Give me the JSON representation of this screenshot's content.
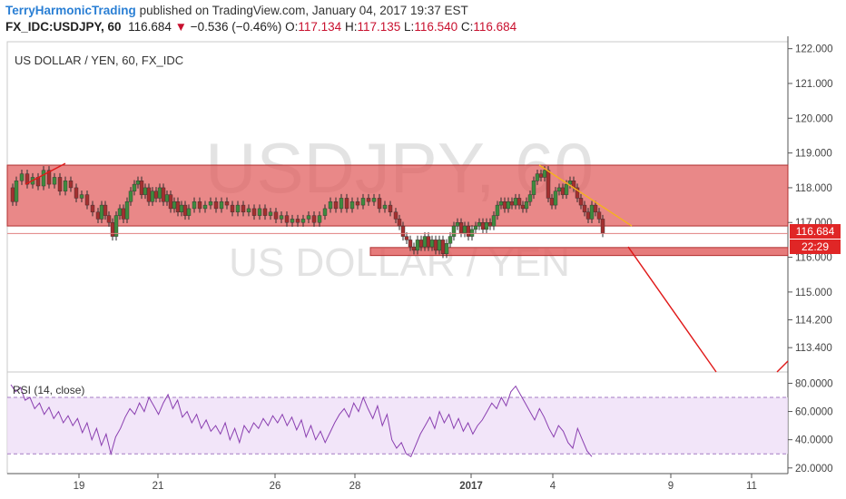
{
  "header": {
    "author": "TerryHarmonicTrading",
    "published_text": "published on TradingView.com, January 04, 2017 19:37 EST",
    "symbol": "FX_IDC:USDJPY, 60",
    "last": "116.684",
    "change_arrow": "▼",
    "change": "−0.536 (−0.46%)",
    "open_label": "O:",
    "open": "117.134",
    "high_label": "H:",
    "high": "117.135",
    "low_label": "L:",
    "low": "116.540",
    "close_label": "C:",
    "close": "116.684"
  },
  "chart_data": [
    {
      "type": "candlestick",
      "title": "US DOLLAR / YEN, 60, FX_IDC",
      "watermark_symbol": "USDJPY, 60",
      "watermark_name": "US DOLLAR / YEN",
      "y_ticks": [
        "122.000",
        "121.000",
        "120.000",
        "119.000",
        "118.000",
        "117.000",
        "116.000",
        "115.000",
        "114.200",
        "113.400"
      ],
      "x_ticks": [
        "19",
        "21",
        "26",
        "28",
        "2017",
        "4",
        "9",
        "11"
      ],
      "ylim": [
        112.7,
        122.2
      ],
      "price_label": "116.684",
      "countdown_label": "22:29",
      "zones": [
        {
          "name": "resistance-zone",
          "from": 116.9,
          "to": 118.65
        },
        {
          "name": "support-zone",
          "from": 116.05,
          "to": 116.28
        }
      ],
      "price_path": [
        [
          0,
          118.0
        ],
        [
          4,
          117.6
        ],
        [
          8,
          118.2
        ],
        [
          14,
          118.4
        ],
        [
          20,
          118.1
        ],
        [
          26,
          118.3
        ],
        [
          32,
          118.05
        ],
        [
          38,
          118.5
        ],
        [
          44,
          118.1
        ],
        [
          50,
          118.3
        ],
        [
          56,
          117.9
        ],
        [
          62,
          118.2
        ],
        [
          68,
          118.0
        ],
        [
          74,
          117.7
        ],
        [
          80,
          117.8
        ],
        [
          86,
          117.5
        ],
        [
          92,
          117.3
        ],
        [
          98,
          117.1
        ],
        [
          102,
          117.5
        ],
        [
          106,
          117.2
        ],
        [
          110,
          117.0
        ],
        [
          114,
          116.6
        ],
        [
          118,
          117.2
        ],
        [
          122,
          117.4
        ],
        [
          126,
          117.1
        ],
        [
          130,
          117.6
        ],
        [
          134,
          117.9
        ],
        [
          138,
          118.1
        ],
        [
          142,
          118.2
        ],
        [
          146,
          117.8
        ],
        [
          150,
          118.0
        ],
        [
          154,
          117.6
        ],
        [
          158,
          117.9
        ],
        [
          162,
          117.7
        ],
        [
          166,
          118.0
        ],
        [
          170,
          117.6
        ],
        [
          174,
          117.8
        ],
        [
          178,
          117.4
        ],
        [
          182,
          117.6
        ],
        [
          186,
          117.3
        ],
        [
          190,
          117.5
        ],
        [
          194,
          117.2
        ],
        [
          198,
          117.4
        ],
        [
          204,
          117.6
        ],
        [
          210,
          117.4
        ],
        [
          216,
          117.5
        ],
        [
          222,
          117.6
        ],
        [
          228,
          117.4
        ],
        [
          234,
          117.6
        ],
        [
          240,
          117.5
        ],
        [
          246,
          117.3
        ],
        [
          252,
          117.5
        ],
        [
          258,
          117.3
        ],
        [
          264,
          117.4
        ],
        [
          270,
          117.2
        ],
        [
          276,
          117.4
        ],
        [
          282,
          117.2
        ],
        [
          288,
          117.3
        ],
        [
          294,
          117.1
        ],
        [
          300,
          117.2
        ],
        [
          306,
          117.0
        ],
        [
          312,
          117.1
        ],
        [
          318,
          117.0
        ],
        [
          324,
          117.1
        ],
        [
          330,
          117.2
        ],
        [
          336,
          117.0
        ],
        [
          342,
          117.2
        ],
        [
          348,
          117.4
        ],
        [
          354,
          117.6
        ],
        [
          360,
          117.4
        ],
        [
          366,
          117.7
        ],
        [
          372,
          117.4
        ],
        [
          378,
          117.6
        ],
        [
          384,
          117.5
        ],
        [
          390,
          117.7
        ],
        [
          396,
          117.6
        ],
        [
          402,
          117.7
        ],
        [
          408,
          117.4
        ],
        [
          414,
          117.5
        ],
        [
          420,
          117.3
        ],
        [
          426,
          117.1
        ],
        [
          430,
          116.9
        ],
        [
          434,
          116.6
        ],
        [
          438,
          116.5
        ],
        [
          442,
          116.3
        ],
        [
          446,
          116.2
        ],
        [
          450,
          116.5
        ],
        [
          454,
          116.3
        ],
        [
          458,
          116.6
        ],
        [
          462,
          116.3
        ],
        [
          466,
          116.5
        ],
        [
          470,
          116.2
        ],
        [
          474,
          116.5
        ],
        [
          478,
          116.1
        ],
        [
          482,
          116.4
        ],
        [
          486,
          116.6
        ],
        [
          490,
          116.9
        ],
        [
          494,
          117.0
        ],
        [
          498,
          116.7
        ],
        [
          502,
          116.9
        ],
        [
          506,
          116.6
        ],
        [
          510,
          116.8
        ],
        [
          514,
          116.9
        ],
        [
          518,
          117.0
        ],
        [
          522,
          116.8
        ],
        [
          526,
          117.0
        ],
        [
          530,
          116.9
        ],
        [
          534,
          117.2
        ],
        [
          538,
          117.5
        ],
        [
          542,
          117.6
        ],
        [
          546,
          117.4
        ],
        [
          550,
          117.6
        ],
        [
          554,
          117.5
        ],
        [
          558,
          117.7
        ],
        [
          562,
          117.5
        ],
        [
          566,
          117.4
        ],
        [
          570,
          117.6
        ],
        [
          574,
          117.8
        ],
        [
          578,
          118.2
        ],
        [
          582,
          118.4
        ],
        [
          586,
          118.3
        ],
        [
          590,
          118.5
        ],
        [
          594,
          117.7
        ],
        [
          598,
          117.5
        ],
        [
          602,
          117.9
        ],
        [
          606,
          118.0
        ],
        [
          610,
          117.8
        ],
        [
          614,
          118.1
        ],
        [
          618,
          118.2
        ],
        [
          622,
          118.0
        ],
        [
          626,
          117.7
        ],
        [
          630,
          117.5
        ],
        [
          634,
          117.3
        ],
        [
          638,
          117.1
        ],
        [
          642,
          117.5
        ],
        [
          646,
          117.3
        ],
        [
          650,
          117.1
        ],
        [
          654,
          116.7
        ]
      ],
      "trendlines": [
        {
          "name": "red-trend-left",
          "color": "#e01919"
        },
        {
          "name": "yellow-trend",
          "color": "#f5b31b"
        },
        {
          "name": "red-projection",
          "color": "#e01919"
        }
      ]
    },
    {
      "type": "line",
      "title": "RSI (14, close)",
      "y_ticks": [
        "80.0000",
        "60.0000",
        "40.0000",
        "20.0000"
      ],
      "ylim": [
        16,
        88
      ],
      "band": [
        30,
        70
      ],
      "values": [
        79,
        74,
        77,
        68,
        70,
        62,
        66,
        58,
        63,
        55,
        60,
        52,
        57,
        50,
        55,
        45,
        52,
        40,
        48,
        36,
        44,
        30,
        42,
        48,
        56,
        62,
        58,
        66,
        60,
        70,
        64,
        58,
        66,
        72,
        62,
        68,
        56,
        60,
        52,
        58,
        48,
        54,
        46,
        50,
        44,
        52,
        40,
        48,
        38,
        50,
        45,
        52,
        48,
        55,
        50,
        57,
        52,
        58,
        50,
        56,
        47,
        54,
        42,
        50,
        40,
        46,
        38,
        45,
        52,
        58,
        62,
        56,
        66,
        60,
        70,
        62,
        55,
        64,
        50,
        58,
        40,
        34,
        38,
        30,
        28,
        36,
        44,
        50,
        56,
        48,
        60,
        52,
        58,
        48,
        55,
        46,
        52,
        44,
        50,
        54,
        60,
        66,
        62,
        70,
        64,
        74,
        78,
        72,
        66,
        60,
        54,
        62,
        56,
        48,
        42,
        50,
        46,
        38,
        34,
        48,
        40,
        32,
        28
      ]
    }
  ]
}
